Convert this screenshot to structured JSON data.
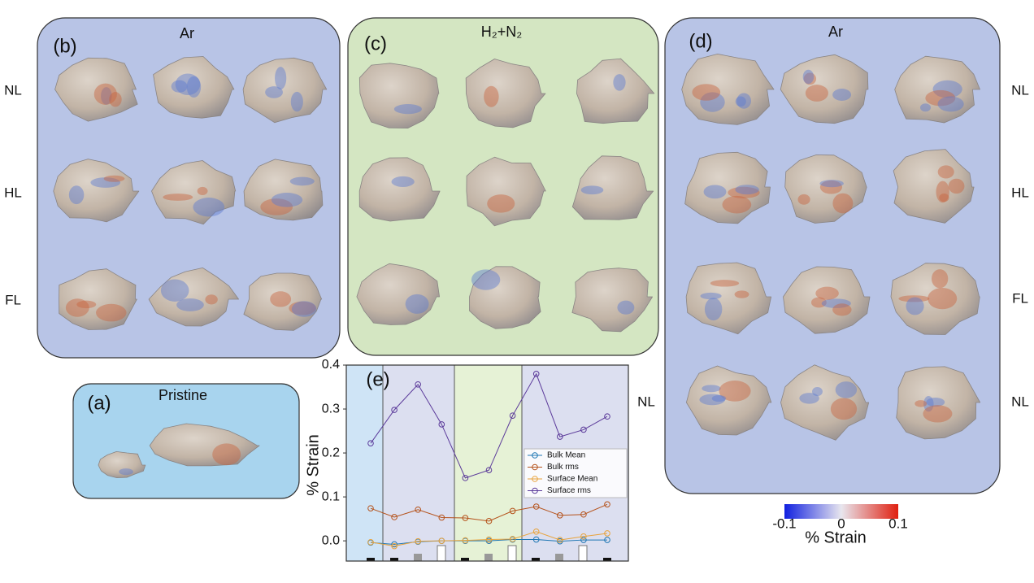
{
  "panels": {
    "a": {
      "label": "(a)",
      "title": "Pristine"
    },
    "b": {
      "label": "(b)",
      "title": "Ar",
      "rows": [
        "NL",
        "HL",
        "FL"
      ]
    },
    "c": {
      "label": "(c)",
      "title": "H₂+N₂"
    },
    "d": {
      "label": "(d)",
      "title": "Ar",
      "rows": [
        "NL",
        "HL",
        "FL",
        "NL"
      ],
      "row_left": "NL"
    },
    "e": {
      "label": "(e)"
    }
  },
  "colorbar": {
    "ticks": [
      -0.1,
      0,
      0.1
    ],
    "label": "% Strain"
  },
  "chart_data": {
    "type": "line",
    "ylabel": "% Strain",
    "categories": [
      null,
      null,
      null,
      null,
      null,
      null,
      null,
      null,
      null,
      null,
      null
    ],
    "ylim": [
      -0.046,
      0.4
    ],
    "yticks": [
      {
        "value": 0,
        "label": "0.0"
      },
      0.1,
      0.2,
      0.3,
      0.4
    ],
    "legend": "right",
    "series": [
      {
        "name": "Bulk Mean",
        "color": "#1f77b4",
        "values": [
          -0.004,
          -0.008,
          -0.002,
          0.0,
          0.0,
          0.0,
          0.003,
          0.003,
          -0.001,
          0.002,
          0.002
        ]
      },
      {
        "name": "Bulk rms",
        "color": "#b5521b",
        "values": [
          0.074,
          0.054,
          0.071,
          0.053,
          0.052,
          0.045,
          0.068,
          0.078,
          0.058,
          0.06,
          0.083
        ]
      },
      {
        "name": "Surface Mean",
        "color": "#e8a33c",
        "values": [
          -0.003,
          -0.012,
          -0.001,
          0.0,
          0.001,
          0.003,
          0.004,
          0.021,
          0.002,
          0.01,
          0.017
        ]
      },
      {
        "name": "Surface rms",
        "color": "#5b3a9a",
        "values": [
          0.222,
          0.298,
          0.356,
          0.265,
          0.143,
          0.161,
          0.285,
          0.38,
          0.237,
          0.253,
          0.283
        ]
      }
    ]
  }
}
